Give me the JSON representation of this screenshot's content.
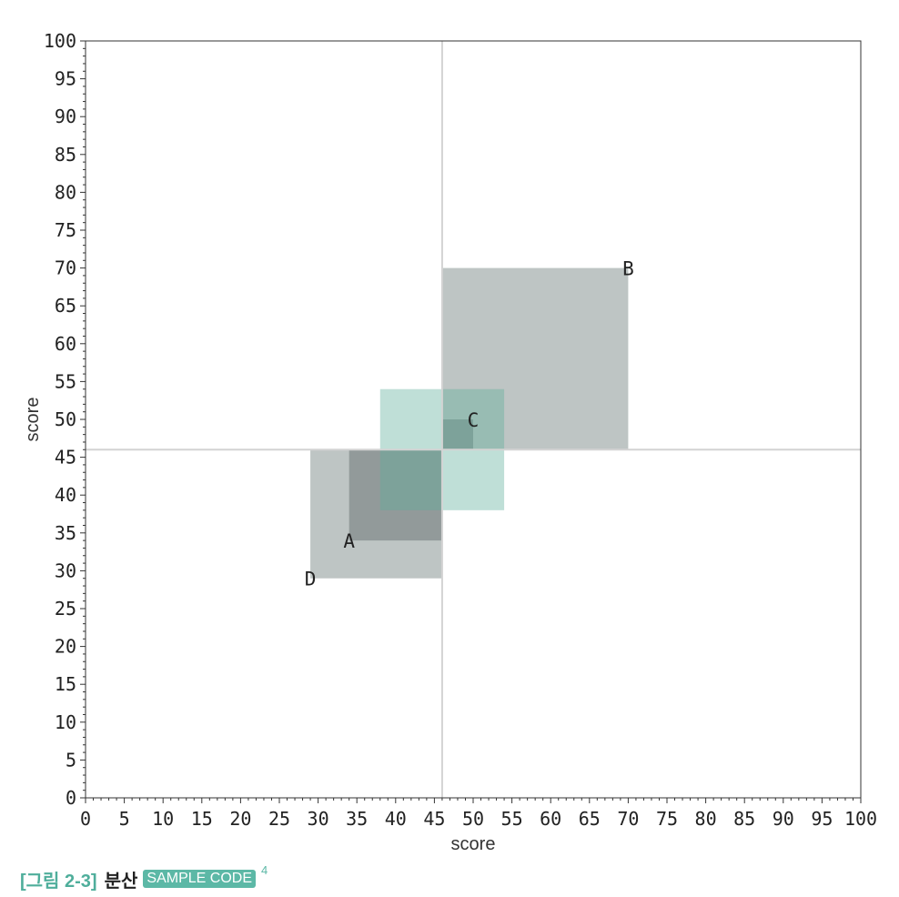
{
  "chart_data": {
    "type": "scatter",
    "xlabel": "score",
    "ylabel": "score",
    "xlim": [
      0,
      100
    ],
    "ylim": [
      0,
      100
    ],
    "xticks": [
      0,
      5,
      10,
      15,
      20,
      25,
      30,
      35,
      40,
      45,
      50,
      55,
      60,
      65,
      70,
      75,
      80,
      85,
      90,
      95,
      100
    ],
    "yticks": [
      0,
      5,
      10,
      15,
      20,
      25,
      30,
      35,
      40,
      45,
      50,
      55,
      60,
      65,
      70,
      75,
      80,
      85,
      90,
      95,
      100
    ],
    "minor_tick_step": 1,
    "grid": false,
    "mean": {
      "x": 46,
      "y": 46
    },
    "points": [
      {
        "label": "A",
        "x": 34,
        "y": 34
      },
      {
        "label": "B",
        "x": 70,
        "y": 70
      },
      {
        "label": "C",
        "x": 50,
        "y": 50
      },
      {
        "label": "D",
        "x": 29,
        "y": 29
      }
    ],
    "deviation_squares": [
      {
        "point": "B",
        "color": "#7d8b8a"
      },
      {
        "point": "D",
        "color": "#7d8b8a"
      },
      {
        "point": "A",
        "color": "#66706f"
      },
      {
        "point": "C",
        "color": "#66706f"
      }
    ],
    "variance_square": {
      "x0": 38,
      "y0": 38,
      "x1": 54,
      "y1": 54,
      "color": "#5faf9b"
    },
    "colors": {
      "mean_line": "#d3d3d3",
      "axis": "#333333"
    }
  },
  "caption": {
    "figure_label": "[그림 2-3]",
    "title": "분산",
    "badge": "SAMPLE CODE",
    "superscript": "4"
  }
}
